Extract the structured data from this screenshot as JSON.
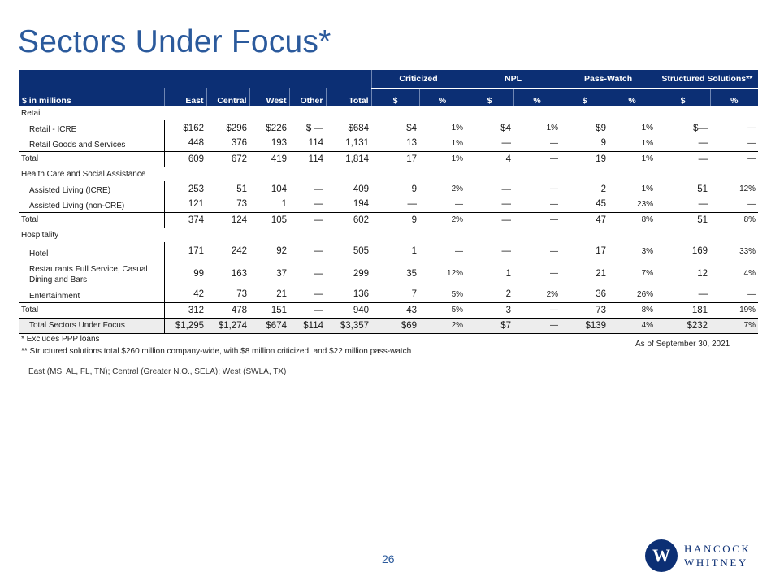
{
  "title": "Sectors Under Focus*",
  "table": {
    "group_headers": [
      "Criticized",
      "NPL",
      "Pass-Watch",
      "Structured Solutions**"
    ],
    "col_headers": [
      "$ in millions",
      "East",
      "Central",
      "West",
      "Other",
      "Total",
      "$",
      "%",
      "$",
      "%",
      "$",
      "%",
      "$",
      "%"
    ],
    "rows": [
      {
        "type": "section",
        "cells": [
          "Retail"
        ]
      },
      {
        "type": "row",
        "cells": [
          "Retail - ICRE",
          "$162",
          "$296",
          "$226",
          "$ —",
          "$684",
          "$4",
          "1%",
          "$4",
          "1%",
          "$9",
          "1%",
          "$—",
          "—"
        ]
      },
      {
        "type": "row",
        "cells": [
          "Retail Goods and Services",
          "448",
          "376",
          "193",
          "114",
          "1,131",
          "13",
          "1%",
          "—",
          "—",
          "9",
          "1%",
          "—",
          "—"
        ]
      },
      {
        "type": "total",
        "cells": [
          "Total",
          "609",
          "672",
          "419",
          "114",
          "1,814",
          "17",
          "1%",
          "4",
          "—",
          "19",
          "1%",
          "—",
          "—"
        ]
      },
      {
        "type": "section",
        "cells": [
          "Health Care and Social Assistance"
        ]
      },
      {
        "type": "row",
        "cells": [
          "Assisted Living (ICRE)",
          "253",
          "51",
          "104",
          "—",
          "409",
          "9",
          "2%",
          "—",
          "—",
          "2",
          "1%",
          "51",
          "12%"
        ]
      },
      {
        "type": "row",
        "cells": [
          "Assisted Living (non-CRE)",
          "121",
          "73",
          "1",
          "—",
          "194",
          "—",
          "—",
          "—",
          "—",
          "45",
          "23%",
          "—",
          "—"
        ]
      },
      {
        "type": "total",
        "cells": [
          "Total",
          "374",
          "124",
          "105",
          "—",
          "602",
          "9",
          "2%",
          "—",
          "—",
          "47",
          "8%",
          "51",
          "8%"
        ]
      },
      {
        "type": "section",
        "cells": [
          "Hospitality"
        ]
      },
      {
        "type": "row mid",
        "cells": [
          "Hotel",
          "171",
          "242",
          "92",
          "—",
          "505",
          "1",
          "—",
          "—",
          "—",
          "17",
          "3%",
          "169",
          "33%"
        ]
      },
      {
        "type": "row tall",
        "cells": [
          "Restaurants Full Service, Casual Dining and Bars",
          "99",
          "163",
          "37",
          "—",
          "299",
          "35",
          "12%",
          "1",
          "—",
          "21",
          "7%",
          "12",
          "4%"
        ]
      },
      {
        "type": "row",
        "cells": [
          "Entertainment",
          "42",
          "73",
          "21",
          "—",
          "136",
          "7",
          "5%",
          "2",
          "2%",
          "36",
          "26%",
          "—",
          "—"
        ]
      },
      {
        "type": "total",
        "cells": [
          "Total",
          "312",
          "478",
          "151",
          "—",
          "940",
          "43",
          "5%",
          "3",
          "—",
          "73",
          "8%",
          "181",
          "19%"
        ]
      },
      {
        "type": "grand",
        "cells": [
          "Total Sectors Under Focus",
          "$1,295",
          "$1,274",
          "$674",
          "$114",
          "$3,357",
          "$69",
          "2%",
          "$7",
          "—",
          "$139",
          "4%",
          "$232",
          "7%"
        ]
      }
    ]
  },
  "footnotes": [
    "*   Excludes PPP loans",
    "** Structured solutions total $260 million company-wide, with $8 million criticized, and $22 million pass-watch"
  ],
  "as_of": "As of September 30, 2021",
  "regions_note": "East (MS, AL, FL, TN); Central (Greater N.O., SELA); West (SWLA, TX)",
  "page_number": "26",
  "logo": {
    "mark": "W",
    "line1": "HANCOCK",
    "line2": "WHITNEY"
  },
  "colors": {
    "title": "#2b5a9c",
    "header": "#0c2f74"
  }
}
